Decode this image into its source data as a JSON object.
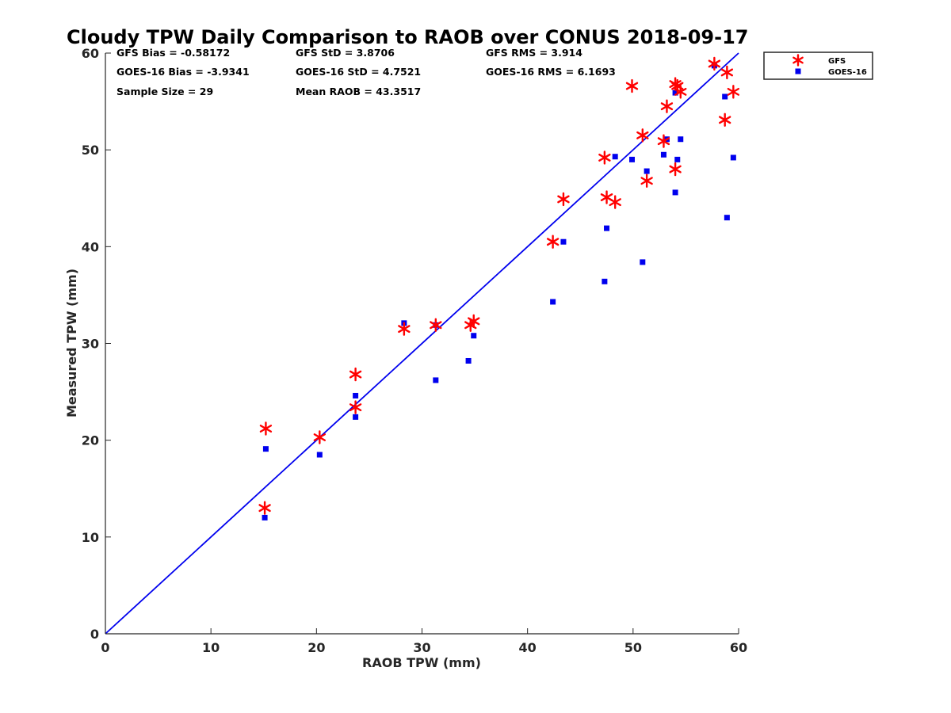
{
  "chart_data": {
    "type": "scatter",
    "title": "Cloudy TPW Daily Comparison to RAOB over CONUS 2018-09-17",
    "xlabel": "RAOB TPW (mm)",
    "ylabel": "Measured TPW (mm)",
    "xlim": [
      0,
      60
    ],
    "ylim": [
      0,
      60
    ],
    "xticks": [
      "0",
      "10",
      "20",
      "30",
      "40",
      "50",
      "60"
    ],
    "yticks": [
      "0",
      "10",
      "20",
      "30",
      "40",
      "50",
      "60"
    ],
    "grid": false,
    "legend_position": "outside-top-right",
    "reference_line": {
      "x": [
        0,
        60
      ],
      "y": [
        0,
        60
      ],
      "color": "#0000ee"
    },
    "stats": [
      [
        "GFS Bias = -0.58172",
        "GFS StD = 3.8706",
        "GFS RMS = 3.914"
      ],
      [
        "GOES-16 Bias = -3.9341",
        "GOES-16 StD = 4.7521",
        "GOES-16 RMS = 6.1693"
      ],
      [
        "Sample Size = 29",
        "Mean RAOB = 43.3517",
        ""
      ]
    ],
    "series": [
      {
        "name": "GFS",
        "marker": "asterisk",
        "color": "#ff0000",
        "points": [
          [
            15.1,
            13.0
          ],
          [
            15.2,
            21.2
          ],
          [
            20.3,
            20.3
          ],
          [
            23.7,
            26.8
          ],
          [
            23.7,
            23.4
          ],
          [
            28.3,
            31.5
          ],
          [
            31.3,
            31.9
          ],
          [
            34.6,
            31.9
          ],
          [
            34.9,
            32.3
          ],
          [
            42.4,
            40.5
          ],
          [
            43.4,
            44.9
          ],
          [
            47.3,
            49.2
          ],
          [
            47.5,
            45.1
          ],
          [
            48.3,
            44.6
          ],
          [
            49.9,
            56.6
          ],
          [
            50.9,
            51.5
          ],
          [
            51.3,
            46.8
          ],
          [
            52.9,
            50.9
          ],
          [
            53.2,
            54.5
          ],
          [
            54.0,
            56.8
          ],
          [
            54.2,
            56.6
          ],
          [
            54.0,
            48.0
          ],
          [
            54.5,
            56.0
          ],
          [
            57.7,
            58.9
          ],
          [
            58.7,
            53.1
          ],
          [
            58.9,
            58.0
          ],
          [
            59.5,
            56.0
          ]
        ]
      },
      {
        "name": "GOES-16",
        "marker": "square",
        "color": "#0000ee",
        "points": [
          [
            15.1,
            12.0
          ],
          [
            15.2,
            19.1
          ],
          [
            20.3,
            18.5
          ],
          [
            23.7,
            24.6
          ],
          [
            23.7,
            22.4
          ],
          [
            28.3,
            32.1
          ],
          [
            31.3,
            26.2
          ],
          [
            31.3,
            31.9
          ],
          [
            34.4,
            28.2
          ],
          [
            34.9,
            30.8
          ],
          [
            42.4,
            34.3
          ],
          [
            43.4,
            40.5
          ],
          [
            47.3,
            36.4
          ],
          [
            47.5,
            41.9
          ],
          [
            48.3,
            49.3
          ],
          [
            49.9,
            49.0
          ],
          [
            50.9,
            38.4
          ],
          [
            51.3,
            47.8
          ],
          [
            52.9,
            49.5
          ],
          [
            53.2,
            51.1
          ],
          [
            54.0,
            55.9
          ],
          [
            54.0,
            45.6
          ],
          [
            54.2,
            49.0
          ],
          [
            54.5,
            51.1
          ],
          [
            57.7,
            58.7
          ],
          [
            58.7,
            55.5
          ],
          [
            58.9,
            43.0
          ],
          [
            59.5,
            49.2
          ]
        ]
      }
    ]
  }
}
